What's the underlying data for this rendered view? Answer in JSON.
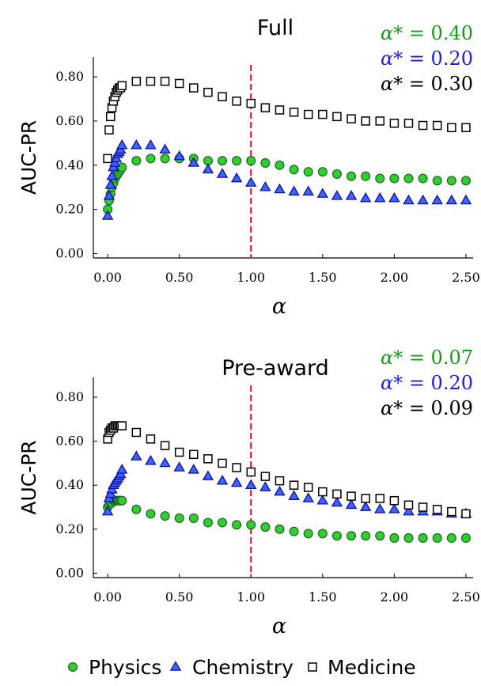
{
  "colors": {
    "Physics": "#32CD32",
    "Physics_stroke": "#1f6e1f",
    "Chemistry": "#3c64ff",
    "Chemistry_stroke": "#1010a0",
    "Medicine": "#ffffff",
    "Medicine_stroke": "#000000",
    "annot_Physics": "#1a9a1a",
    "annot_Chemistry": "#1e1ee6",
    "annot_Medicine": "#000000",
    "vline": "#d0204a"
  },
  "legend": [
    {
      "label": "Physics",
      "marker": "circle"
    },
    {
      "label": "Chemistry",
      "marker": "triangle"
    },
    {
      "label": "Medicine",
      "marker": "square"
    }
  ],
  "chart_data": [
    {
      "type": "scatter",
      "title": "Full",
      "xlabel": "α",
      "ylabel": "AUC-PR",
      "xlim": [
        -0.1,
        2.55
      ],
      "ylim": [
        -0.02,
        0.89
      ],
      "xticks": [
        "0.00",
        "0.50",
        "1.00",
        "1.50",
        "2.00",
        "2.50"
      ],
      "yticks": [
        "0.00",
        "0.20",
        "0.40",
        "0.60",
        "0.80"
      ],
      "vline_x": 1.0,
      "annotations": [
        {
          "series": "Physics",
          "prefix": "α*",
          "text": "= 0.40"
        },
        {
          "series": "Chemistry",
          "prefix": "α*",
          "text": "= 0.20"
        },
        {
          "series": "Medicine",
          "prefix": "α*",
          "text": "= 0.30"
        }
      ],
      "series": [
        {
          "name": "Physics",
          "x": [
            0.0,
            0.01,
            0.02,
            0.03,
            0.04,
            0.05,
            0.06,
            0.07,
            0.08,
            0.09,
            0.1,
            0.2,
            0.3,
            0.4,
            0.5,
            0.6,
            0.7,
            0.8,
            0.9,
            1.0,
            1.1,
            1.2,
            1.3,
            1.4,
            1.5,
            1.6,
            1.7,
            1.8,
            1.9,
            2.0,
            2.1,
            2.2,
            2.3,
            2.4,
            2.5
          ],
          "y": [
            0.2,
            0.24,
            0.27,
            0.3,
            0.32,
            0.34,
            0.35,
            0.36,
            0.37,
            0.38,
            0.39,
            0.42,
            0.43,
            0.43,
            0.43,
            0.43,
            0.42,
            0.42,
            0.42,
            0.42,
            0.41,
            0.4,
            0.38,
            0.37,
            0.37,
            0.36,
            0.35,
            0.35,
            0.34,
            0.34,
            0.34,
            0.34,
            0.33,
            0.33,
            0.33
          ]
        },
        {
          "name": "Chemistry",
          "x": [
            0.0,
            0.01,
            0.02,
            0.03,
            0.04,
            0.05,
            0.06,
            0.07,
            0.08,
            0.09,
            0.1,
            0.2,
            0.3,
            0.4,
            0.5,
            0.6,
            0.7,
            0.8,
            0.9,
            1.0,
            1.1,
            1.2,
            1.3,
            1.4,
            1.5,
            1.6,
            1.7,
            1.8,
            1.9,
            2.0,
            2.1,
            2.2,
            2.3,
            2.4,
            2.5
          ],
          "y": [
            0.17,
            0.26,
            0.31,
            0.35,
            0.39,
            0.41,
            0.43,
            0.45,
            0.46,
            0.47,
            0.49,
            0.49,
            0.49,
            0.47,
            0.44,
            0.41,
            0.38,
            0.36,
            0.34,
            0.32,
            0.3,
            0.29,
            0.28,
            0.28,
            0.27,
            0.26,
            0.26,
            0.25,
            0.25,
            0.25,
            0.24,
            0.24,
            0.24,
            0.24,
            0.24
          ]
        },
        {
          "name": "Medicine",
          "x": [
            0.0,
            0.01,
            0.02,
            0.03,
            0.04,
            0.05,
            0.06,
            0.07,
            0.08,
            0.09,
            0.1,
            0.2,
            0.3,
            0.4,
            0.5,
            0.6,
            0.7,
            0.8,
            0.9,
            1.0,
            1.1,
            1.2,
            1.3,
            1.4,
            1.5,
            1.6,
            1.7,
            1.8,
            1.9,
            2.0,
            2.1,
            2.2,
            2.3,
            2.4,
            2.5
          ],
          "y": [
            0.43,
            0.56,
            0.62,
            0.66,
            0.69,
            0.71,
            0.73,
            0.74,
            0.75,
            0.75,
            0.76,
            0.78,
            0.78,
            0.78,
            0.77,
            0.75,
            0.73,
            0.71,
            0.69,
            0.68,
            0.66,
            0.65,
            0.64,
            0.63,
            0.63,
            0.62,
            0.61,
            0.6,
            0.6,
            0.59,
            0.59,
            0.58,
            0.58,
            0.57,
            0.57
          ]
        }
      ]
    },
    {
      "type": "scatter",
      "title": "Pre-award",
      "xlabel": "α",
      "ylabel": "AUC-PR",
      "xlim": [
        -0.1,
        2.55
      ],
      "ylim": [
        -0.02,
        0.89
      ],
      "xticks": [
        "0.00",
        "0.50",
        "1.00",
        "1.50",
        "2.00",
        "2.50"
      ],
      "yticks": [
        "0.00",
        "0.20",
        "0.40",
        "0.60",
        "0.80"
      ],
      "vline_x": 1.0,
      "annotations": [
        {
          "series": "Physics",
          "prefix": "α*",
          "text": "= 0.07"
        },
        {
          "series": "Chemistry",
          "prefix": "α*",
          "text": "= 0.20"
        },
        {
          "series": "Medicine",
          "prefix": "α*",
          "text": "= 0.09"
        }
      ],
      "series": [
        {
          "name": "Physics",
          "x": [
            0.0,
            0.01,
            0.02,
            0.03,
            0.04,
            0.05,
            0.06,
            0.07,
            0.08,
            0.09,
            0.1,
            0.2,
            0.3,
            0.4,
            0.5,
            0.6,
            0.7,
            0.8,
            0.9,
            1.0,
            1.1,
            1.2,
            1.3,
            1.4,
            1.5,
            1.6,
            1.7,
            1.8,
            1.9,
            2.0,
            2.1,
            2.2,
            2.3,
            2.4,
            2.5
          ],
          "y": [
            0.3,
            0.31,
            0.32,
            0.32,
            0.33,
            0.33,
            0.33,
            0.33,
            0.33,
            0.33,
            0.33,
            0.29,
            0.27,
            0.26,
            0.25,
            0.25,
            0.23,
            0.23,
            0.22,
            0.22,
            0.21,
            0.2,
            0.19,
            0.18,
            0.18,
            0.17,
            0.17,
            0.17,
            0.17,
            0.16,
            0.16,
            0.16,
            0.16,
            0.16,
            0.16
          ]
        },
        {
          "name": "Chemistry",
          "x": [
            0.0,
            0.01,
            0.02,
            0.03,
            0.04,
            0.05,
            0.06,
            0.07,
            0.08,
            0.09,
            0.1,
            0.2,
            0.3,
            0.4,
            0.5,
            0.6,
            0.7,
            0.8,
            0.9,
            1.0,
            1.1,
            1.2,
            1.3,
            1.4,
            1.5,
            1.6,
            1.7,
            1.8,
            1.9,
            2.0,
            2.1,
            2.2,
            2.3,
            2.4,
            2.5
          ],
          "y": [
            0.28,
            0.34,
            0.36,
            0.38,
            0.4,
            0.41,
            0.42,
            0.43,
            0.44,
            0.45,
            0.47,
            0.53,
            0.51,
            0.5,
            0.48,
            0.47,
            0.44,
            0.42,
            0.41,
            0.4,
            0.39,
            0.37,
            0.35,
            0.34,
            0.33,
            0.32,
            0.31,
            0.3,
            0.29,
            0.29,
            0.28,
            0.28,
            0.28,
            0.27,
            0.27
          ]
        },
        {
          "name": "Medicine",
          "x": [
            0.0,
            0.01,
            0.02,
            0.03,
            0.04,
            0.05,
            0.06,
            0.07,
            0.08,
            0.09,
            0.1,
            0.2,
            0.3,
            0.4,
            0.5,
            0.6,
            0.7,
            0.8,
            0.9,
            1.0,
            1.1,
            1.2,
            1.3,
            1.4,
            1.5,
            1.6,
            1.7,
            1.8,
            1.9,
            2.0,
            2.1,
            2.2,
            2.3,
            2.4,
            2.5
          ],
          "y": [
            0.61,
            0.64,
            0.65,
            0.66,
            0.66,
            0.67,
            0.67,
            0.67,
            0.67,
            0.67,
            0.67,
            0.64,
            0.61,
            0.58,
            0.55,
            0.54,
            0.52,
            0.5,
            0.48,
            0.46,
            0.44,
            0.42,
            0.4,
            0.39,
            0.37,
            0.36,
            0.35,
            0.34,
            0.34,
            0.33,
            0.31,
            0.3,
            0.29,
            0.28,
            0.27
          ]
        }
      ]
    }
  ]
}
